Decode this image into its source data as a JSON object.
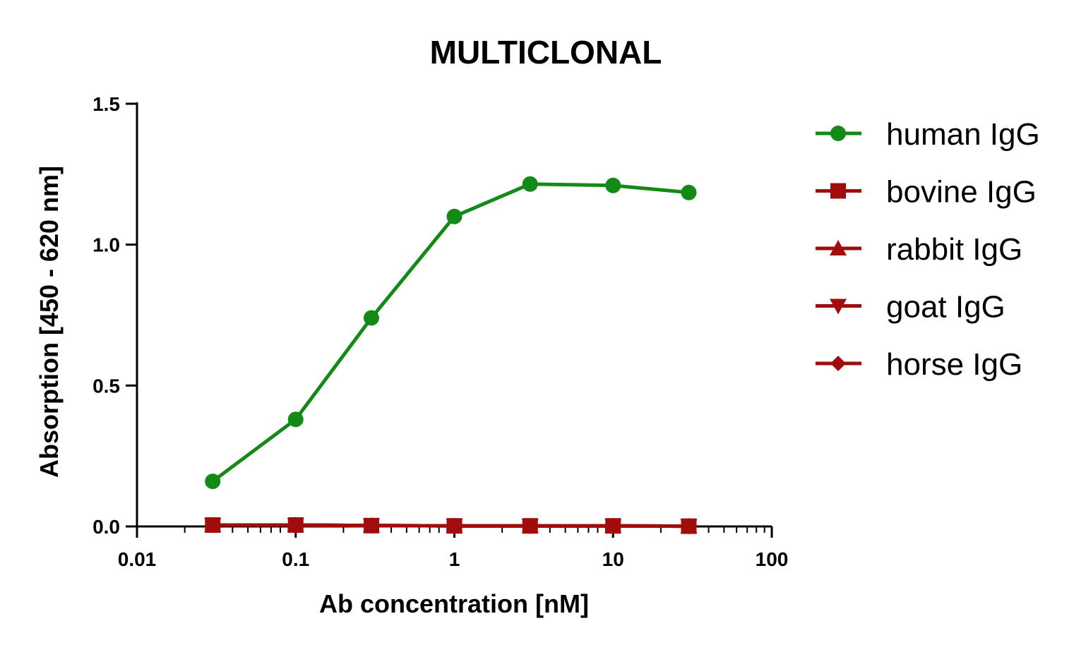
{
  "chart_data": {
    "type": "line",
    "title": "MULTICLONAL",
    "xlabel": "Ab concentration [nM]",
    "ylabel": "Absorption [450 - 620 nm]",
    "xscale": "log",
    "xlim": [
      0.01,
      100
    ],
    "ylim": [
      0,
      1.5
    ],
    "xticks": [
      0.01,
      0.1,
      1,
      10,
      100
    ],
    "xtick_labels": [
      "0.01",
      "0.1",
      "1",
      "10",
      "100"
    ],
    "yticks": [
      0,
      0.5,
      1.0,
      1.5
    ],
    "ytick_labels": [
      "0.0",
      "0.5",
      "1.0",
      "1.5"
    ],
    "grid": false,
    "legend_position": "right",
    "x": [
      0.03,
      0.1,
      0.3,
      1,
      3,
      10,
      30
    ],
    "series": [
      {
        "name": "human IgG",
        "marker": "circle",
        "color": "#138a16",
        "values": [
          0.16,
          0.38,
          0.74,
          1.1,
          1.215,
          1.21,
          1.185
        ]
      },
      {
        "name": "bovine IgG",
        "marker": "square",
        "color": "#a10d0d",
        "values": [
          0.005,
          0.005,
          0.003,
          0.002,
          0.002,
          0.002,
          0.001
        ]
      },
      {
        "name": "rabbit IgG",
        "marker": "triangle-up",
        "color": "#a10d0d",
        "values": [
          0.005,
          0.005,
          0.003,
          0.002,
          0.002,
          0.002,
          0.001
        ]
      },
      {
        "name": "goat IgG",
        "marker": "triangle-down",
        "color": "#a10d0d",
        "values": [
          0.005,
          0.005,
          0.003,
          0.002,
          0.002,
          0.002,
          0.001
        ]
      },
      {
        "name": "horse IgG",
        "marker": "diamond",
        "color": "#a10d0d",
        "values": [
          0.005,
          0.005,
          0.003,
          0.002,
          0.002,
          0.002,
          0.001
        ]
      }
    ]
  }
}
